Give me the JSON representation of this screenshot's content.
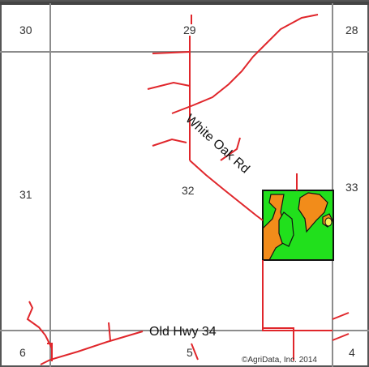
{
  "map": {
    "section_labels": [
      {
        "id": "s30",
        "text": "30"
      },
      {
        "id": "s29",
        "text": "29"
      },
      {
        "id": "s28",
        "text": "28"
      },
      {
        "id": "s31",
        "text": "31"
      },
      {
        "id": "s32",
        "text": "32"
      },
      {
        "id": "s33",
        "text": "33"
      },
      {
        "id": "s6",
        "text": "6"
      },
      {
        "id": "s5",
        "text": "5"
      },
      {
        "id": "s4",
        "text": "4"
      }
    ],
    "road_labels": {
      "white_oak": "White Oak Rd",
      "old_hwy": "Old Hwy 34"
    },
    "copyright": "©AgriData, Inc. 2014",
    "colors": {
      "section_line": "#8c8c8c",
      "road": "#e0262b",
      "field_green": "#21e01c",
      "field_orange": "#f28c1a",
      "field_yellow": "#f7ef5a",
      "outline": "#111111"
    }
  }
}
